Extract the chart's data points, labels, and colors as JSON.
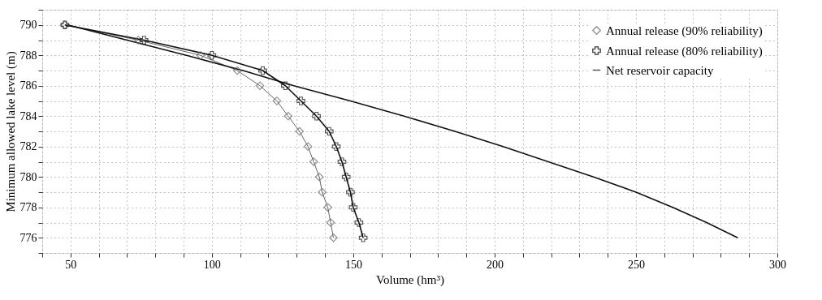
{
  "chart_data": {
    "type": "line",
    "xlabel": "Volume (hm³)",
    "ylabel": "Minimum allowed lake level (m)",
    "xlim": [
      40,
      300
    ],
    "ylim": [
      775,
      791
    ],
    "xticks": [
      {
        "value": 40,
        "label": null
      },
      50,
      {
        "value": 60,
        "label": null
      },
      {
        "value": 70,
        "label": null
      },
      {
        "value": 80,
        "label": null
      },
      {
        "value": 90,
        "label": null
      },
      100,
      {
        "value": 110,
        "label": null
      },
      {
        "value": 120,
        "label": null
      },
      {
        "value": 130,
        "label": null
      },
      {
        "value": 140,
        "label": null
      },
      150,
      {
        "value": 160,
        "label": null
      },
      {
        "value": 170,
        "label": null
      },
      {
        "value": 180,
        "label": null
      },
      {
        "value": 190,
        "label": null
      },
      200,
      {
        "value": 210,
        "label": null
      },
      {
        "value": 220,
        "label": null
      },
      {
        "value": 230,
        "label": null
      },
      {
        "value": 240,
        "label": null
      },
      250,
      {
        "value": 260,
        "label": null
      },
      {
        "value": 270,
        "label": null
      },
      {
        "value": 280,
        "label": null
      },
      {
        "value": 290,
        "label": null
      },
      300
    ],
    "yticks": [
      {
        "value": 775,
        "label": null
      },
      776,
      {
        "value": 777,
        "label": null
      },
      778,
      {
        "value": 779,
        "label": null
      },
      780,
      {
        "value": 781,
        "label": null
      },
      782,
      {
        "value": 783,
        "label": null
      },
      784,
      {
        "value": 785,
        "label": null
      },
      786,
      {
        "value": 787,
        "label": null
      },
      788,
      {
        "value": 789,
        "label": null
      },
      790,
      {
        "value": 791,
        "label": null
      }
    ],
    "grid": true,
    "legend": "top right",
    "series": [
      {
        "name": "Annual release (90% reliability)",
        "color": "#666666",
        "marker": "diamond",
        "x": [
          48,
          74,
          96,
          109,
          117,
          123,
          127,
          131,
          134,
          136,
          138,
          139,
          141,
          142,
          143
        ],
        "values": [
          790,
          789,
          788,
          787,
          786,
          785,
          784,
          783,
          782,
          781,
          780,
          779,
          778,
          777,
          776
        ]
      },
      {
        "name": "Annual release (80% reliability)",
        "color": "#111111",
        "marker": "cross",
        "x": [
          48,
          76,
          100,
          118,
          126,
          131.5,
          137,
          141.5,
          144,
          146,
          147.5,
          149,
          150,
          152,
          153.5
        ],
        "values": [
          790,
          789,
          788,
          787,
          786,
          785,
          784,
          783,
          782,
          781,
          780,
          779,
          778,
          777,
          776
        ]
      },
      {
        "name": "Net reservoir capacity",
        "color": "#111111",
        "marker": "none",
        "x": [
          49,
          70,
          91,
          111,
          129,
          149,
          168,
          186,
          203,
          219,
          235,
          250,
          263,
          275,
          286
        ],
        "values": [
          790,
          789,
          788,
          787,
          786,
          785,
          784,
          783,
          782,
          781,
          780,
          779,
          778,
          777,
          776
        ]
      }
    ]
  }
}
